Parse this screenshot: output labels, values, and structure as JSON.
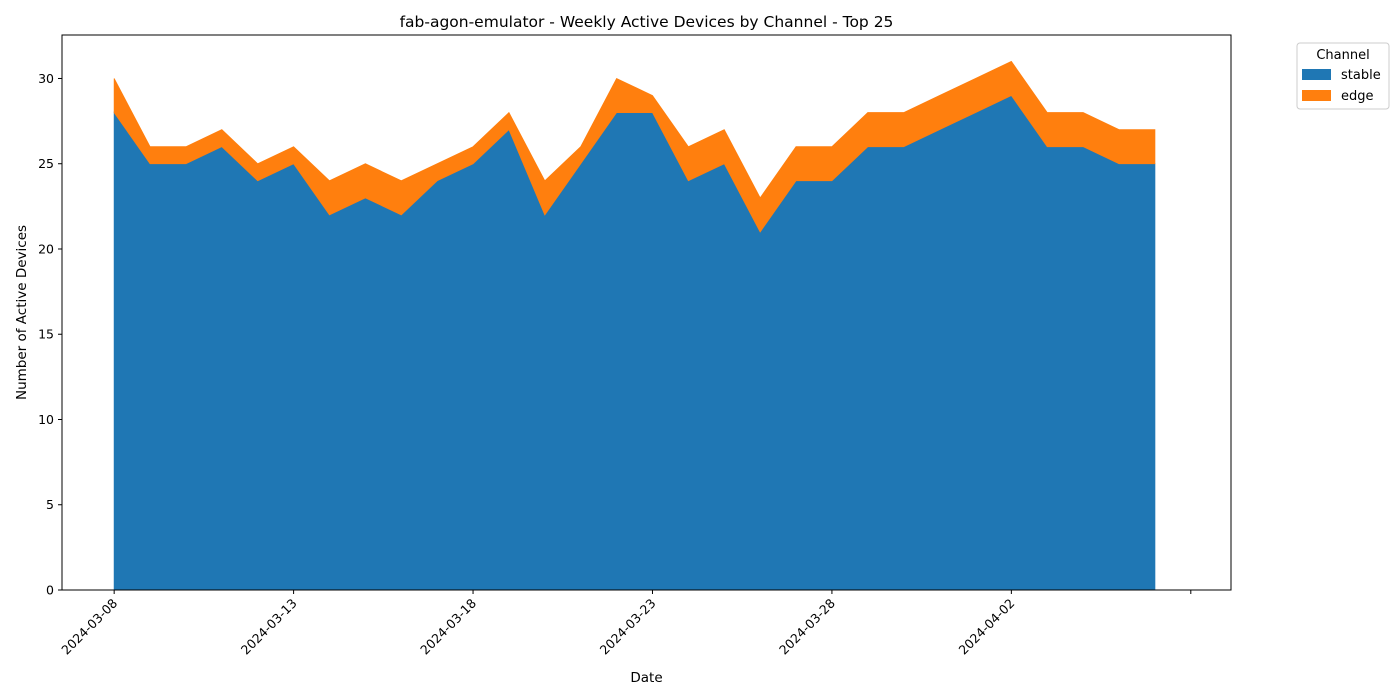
{
  "chart_data": {
    "type": "area",
    "stacked": true,
    "title": "fab-agon-emulator - Weekly Active Devices by Channel - Top 25",
    "xlabel": "Date",
    "ylabel": "Number of Active Devices",
    "x": [
      "2024-03-08",
      "2024-03-09",
      "2024-03-10",
      "2024-03-11",
      "2024-03-12",
      "2024-03-13",
      "2024-03-14",
      "2024-03-15",
      "2024-03-16",
      "2024-03-17",
      "2024-03-18",
      "2024-03-19",
      "2024-03-20",
      "2024-03-21",
      "2024-03-22",
      "2024-03-23",
      "2024-03-24",
      "2024-03-25",
      "2024-03-26",
      "2024-03-27",
      "2024-03-28",
      "2024-03-29",
      "2024-03-30",
      "2024-03-31",
      "2024-04-01",
      "2024-04-02",
      "2024-04-03",
      "2024-04-04",
      "2024-04-05",
      "2024-04-06"
    ],
    "x_ticks": [
      "2024-03-08",
      "2024-03-13",
      "2024-03-18",
      "2024-03-23",
      "2024-03-28",
      "2024-04-02"
    ],
    "xlim": [
      "2024-03-06T13:07",
      "2024-04-08T02:53"
    ],
    "extra_x_tick": "2024-04-07",
    "ylim": [
      0,
      32.55
    ],
    "y_ticks": [
      0,
      5,
      10,
      15,
      20,
      25,
      30
    ],
    "grid": false,
    "series": [
      {
        "name": "stable",
        "color": "#1f77b4",
        "values": [
          28,
          25,
          25,
          26,
          24,
          25,
          22,
          23,
          22,
          24,
          25,
          27,
          22,
          25,
          28,
          28,
          24,
          25,
          21,
          24,
          24,
          26,
          26,
          27,
          28,
          29,
          26,
          26,
          25,
          25
        ]
      },
      {
        "name": "edge",
        "color": "#ff7f0e",
        "values": [
          2,
          1,
          1,
          1,
          1,
          1,
          2,
          2,
          2,
          1,
          1,
          1,
          2,
          1,
          2,
          1,
          2,
          2,
          2,
          2,
          2,
          2,
          2,
          2,
          2,
          2,
          2,
          2,
          2,
          2
        ]
      }
    ],
    "legend": {
      "title": "Channel",
      "position": "upper-right-outside"
    }
  }
}
